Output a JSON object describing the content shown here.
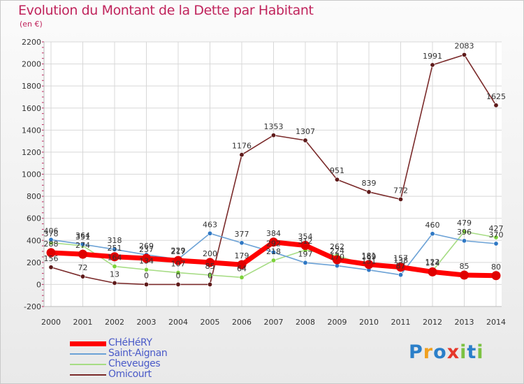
{
  "title": "Evolution du Montant de la Dette par Habitant",
  "subtitle": "(en €)",
  "logo": {
    "text": "Proxiti",
    "colors": [
      "#2b7fc9",
      "#f0a020",
      "#2b7fc9",
      "#e5372a",
      "#7cc242",
      "#2b7fc9",
      "#7cc242"
    ]
  },
  "chart_data": {
    "type": "line",
    "title": "Evolution du Montant de la Dette par Habitant",
    "subtitle": "(en €)",
    "xlabel": "",
    "ylabel": "",
    "categories": [
      "2000",
      "2001",
      "2002",
      "2003",
      "2004",
      "2005",
      "2006",
      "2007",
      "2008",
      "2009",
      "2010",
      "2011",
      "2012",
      "2013",
      "2014"
    ],
    "ylim": [
      -200,
      2200
    ],
    "yticks": [
      -200,
      0,
      200,
      400,
      600,
      800,
      1000,
      1200,
      1400,
      1600,
      1800,
      2000,
      2200
    ],
    "grid": true,
    "legend_position": "bottom-left",
    "series": [
      {
        "name": "CHéHéRY",
        "color": "#ff0000",
        "marker_color": "#e00000",
        "thick": true,
        "show_labels": true,
        "values": [
          288,
          274,
          251,
          237,
          217,
          200,
          179,
          384,
          354,
          224,
          181,
          157,
          114,
          85,
          80
        ]
      },
      {
        "name": "Saint-Aignan",
        "color": "#6ca2d6",
        "marker_color": "#2f78c4",
        "thick": false,
        "show_labels": true,
        "values": [
          406,
          364,
          318,
          269,
          229,
          463,
          377,
          292,
          197,
          170,
          131,
          87,
          460,
          396,
          370
        ]
      },
      {
        "name": "Cheveuges",
        "color": "#a6dc84",
        "marker_color": "#7cd23a",
        "thick": false,
        "show_labels": true,
        "values": [
          378,
          351,
          164,
          134,
          107,
          85,
          64,
          218,
          312,
          262,
          169,
          138,
          122,
          479,
          427
        ]
      },
      {
        "name": "Omicourt",
        "color": "#7a2a2a",
        "marker_color": "#5e1a1a",
        "thick": false,
        "show_labels": true,
        "values": [
          156,
          72,
          13,
          0,
          0,
          0,
          1176,
          1353,
          1307,
          951,
          839,
          772,
          1991,
          2083,
          1625
        ]
      }
    ]
  }
}
